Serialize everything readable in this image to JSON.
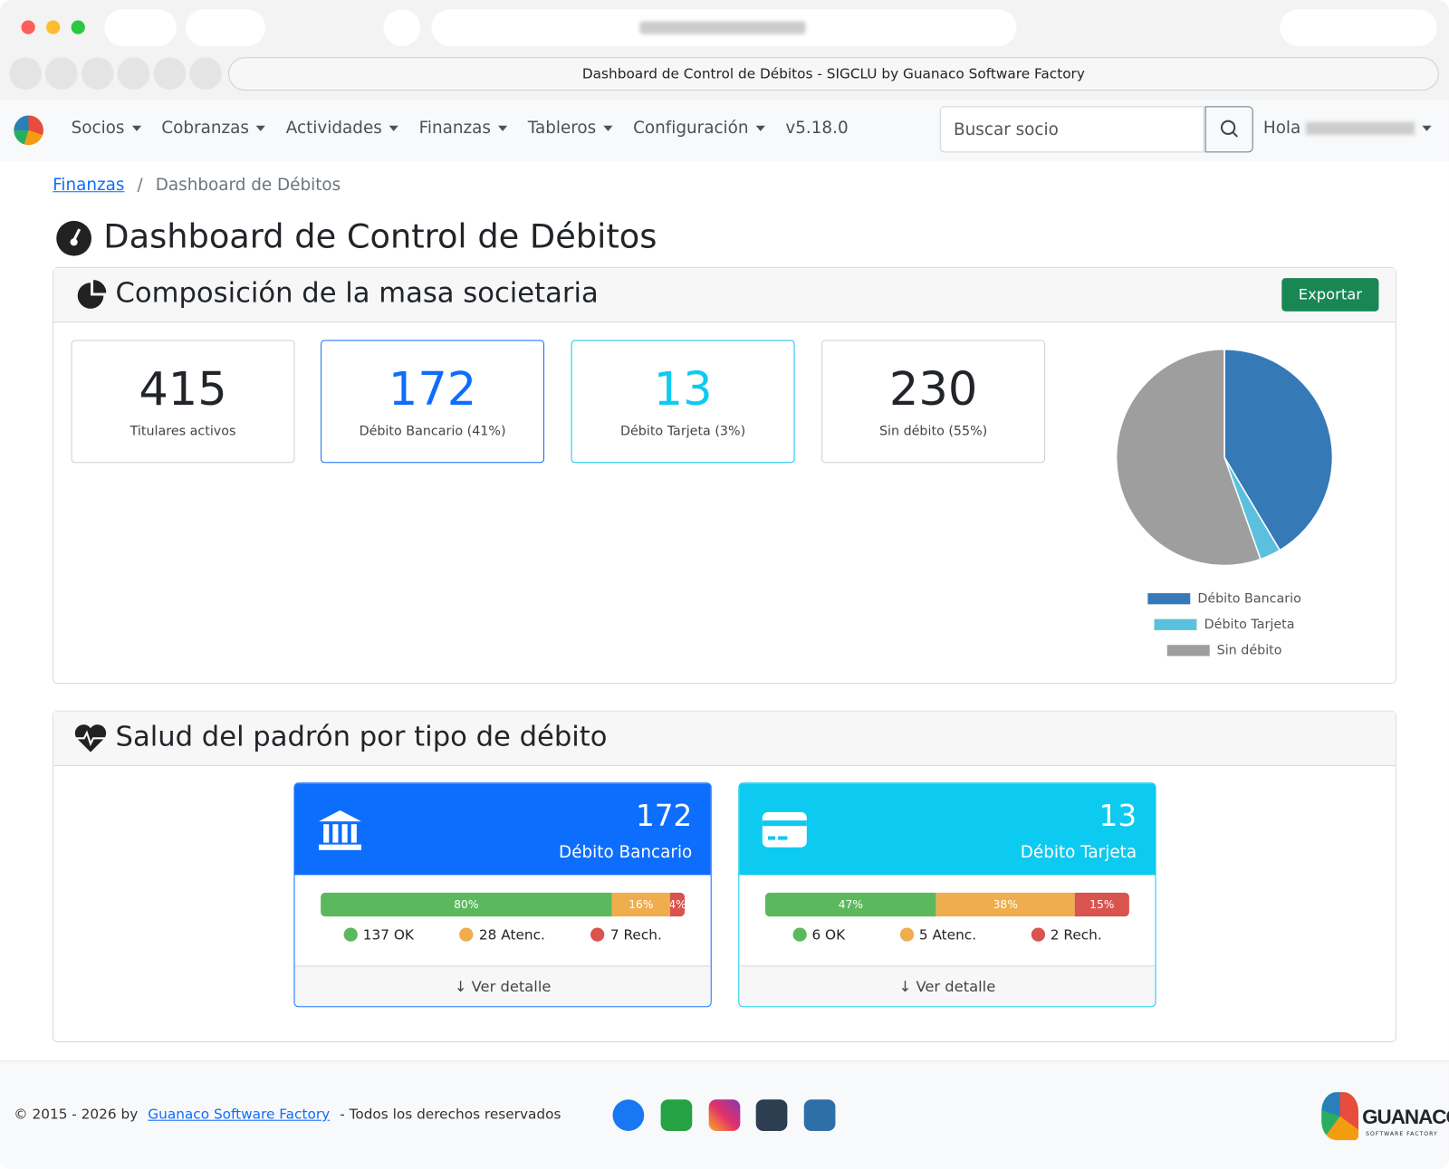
{
  "browser": {
    "tab_title": "Dashboard de Control de Débitos - SIGCLU by Guanaco Software Factory"
  },
  "navbar": {
    "menu": [
      "Socios",
      "Cobranzas",
      "Actividades",
      "Finanzas",
      "Tableros",
      "Configuración"
    ],
    "version": "v5.18.0",
    "search_placeholder": "Buscar socio",
    "greeting": "Hola"
  },
  "breadcrumb": {
    "link": "Finanzas",
    "separator": "/",
    "current": "Dashboard de Débitos"
  },
  "page_title": "Dashboard de Control de Débitos",
  "composition": {
    "title": "Composición de la masa societaria",
    "export_button": "Exportar",
    "stats": [
      {
        "value": 415,
        "label": "Titulares activos"
      },
      {
        "value": 172,
        "label": "Débito Bancario (41%)"
      },
      {
        "value": 13,
        "label": "Débito Tarjeta (3%)"
      },
      {
        "value": 230,
        "label": "Sin débito (55%)"
      }
    ]
  },
  "chart_data": {
    "type": "pie",
    "categories": [
      "Débito Bancario",
      "Débito Tarjeta",
      "Sin débito"
    ],
    "values": [
      172,
      13,
      230
    ],
    "colors": [
      "#3579b6",
      "#5bc0de",
      "#9e9e9e"
    ]
  },
  "health": {
    "title": "Salud del padrón por tipo de débito",
    "cards": [
      {
        "value": 172,
        "label": "Débito Bancario",
        "segments": {
          "values": [
            80,
            16,
            4
          ],
          "value_labels": [
            "80%",
            "16%",
            "4%"
          ]
        },
        "counts": [
          "137 OK",
          "28 Atenc.",
          "7 Rech."
        ],
        "link": "Ver detalle"
      },
      {
        "value": 13,
        "label": "Débito Tarjeta",
        "segments": {
          "values": [
            47,
            38,
            15
          ],
          "value_labels": [
            "47%",
            "38%",
            "15%"
          ]
        },
        "counts": [
          "6 OK",
          "5 Atenc.",
          "2 Rech."
        ],
        "link": "Ver detalle"
      }
    ]
  },
  "footer": {
    "copyright": "© 2015 - 2026 by",
    "company_link": "Guanaco Software Factory",
    "rights": "- Todos los derechos reservados",
    "logo_text": "GUANACO",
    "logo_subtext": "SOFTWARE FACTORY"
  }
}
